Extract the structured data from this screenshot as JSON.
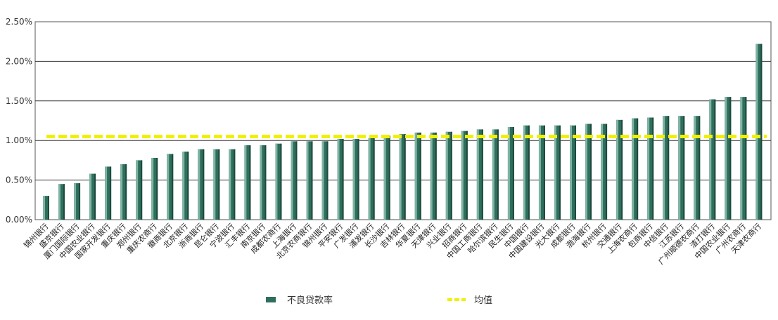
{
  "chart_data": {
    "type": "bar",
    "categories": [
      "锦州银行",
      "盛京银行",
      "厦门国际银行",
      "中国农业银行",
      "国家开发银行",
      "重庆银行",
      "郑州银行",
      "重庆农商行",
      "徽商银行",
      "北京银行",
      "浙商银行",
      "昆仑银行",
      "宁波银行",
      "汇丰银行",
      "南京银行",
      "成都农商行",
      "上海银行",
      "北京农商银行",
      "锦州银行",
      "平安银行",
      "广发银行",
      "浦发银行",
      "长沙银行",
      "吉林银行",
      "华夏银行",
      "天津银行",
      "兴业银行",
      "招商银行",
      "中国工商银行",
      "哈尔滨银行",
      "民生银行",
      "中国银行",
      "中国建设银行",
      "光大银行",
      "成都银行",
      "渤海银行",
      "杭州银行",
      "交通银行",
      "上海农商行",
      "包商银行",
      "中信银行",
      "江苏银行",
      "广州顺德农商行",
      "渣打银行",
      "中国农业银行",
      "广州农商行",
      "天津农商行"
    ],
    "series": [
      {
        "name": "不良贷款率",
        "type": "bar",
        "color": "#2e6e5c",
        "values": [
          0.3,
          0.45,
          0.46,
          0.58,
          0.67,
          0.7,
          0.75,
          0.78,
          0.83,
          0.86,
          0.89,
          0.89,
          0.89,
          0.94,
          0.94,
          0.96,
          0.99,
          0.99,
          0.99,
          1.02,
          1.02,
          1.03,
          1.06,
          1.08,
          1.1,
          1.1,
          1.11,
          1.12,
          1.14,
          1.14,
          1.17,
          1.19,
          1.19,
          1.19,
          1.19,
          1.21,
          1.21,
          1.26,
          1.28,
          1.29,
          1.31,
          1.31,
          1.31,
          1.52,
          1.55,
          1.55,
          2.22
        ]
      },
      {
        "name": "均值",
        "type": "line",
        "style": "dashed",
        "color": "#f0f000",
        "value": 1.05
      }
    ],
    "y_ticks": [
      "0.00%",
      "0.50%",
      "1.00%",
      "1.50%",
      "2.00%",
      "2.50%"
    ],
    "ylim": [
      0,
      2.5
    ],
    "grid": "horizontal",
    "legend_position": "bottom"
  }
}
